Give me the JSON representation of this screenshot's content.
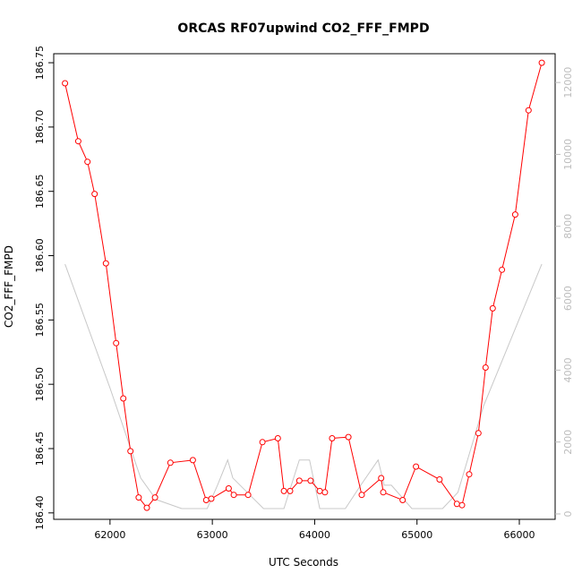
{
  "chart_data": {
    "type": "line",
    "title": "ORCAS RF07upwind CO2_FFF_FMPD",
    "xlabel": "UTC Seconds",
    "ylabel": "CO2_FFF_FMPD",
    "xlim": [
      61450,
      66350
    ],
    "ylim": [
      186.395,
      186.757
    ],
    "y2lim": [
      -150,
      12800
    ],
    "x_ticks": [
      62000,
      63000,
      64000,
      65000,
      66000
    ],
    "y_ticks": [
      186.4,
      186.45,
      186.5,
      186.55,
      186.6,
      186.65,
      186.7,
      186.75
    ],
    "y_tick_labels": [
      "186.40",
      "186.45",
      "186.50",
      "186.55",
      "186.60",
      "186.65",
      "186.70",
      "186.75"
    ],
    "y2_ticks": [
      0,
      2000,
      4000,
      6000,
      8000,
      10000,
      12000
    ],
    "grid": false,
    "series": [
      {
        "axis": "left",
        "color": "#ff0000",
        "markers": true,
        "x": [
          61560,
          61690,
          61780,
          61850,
          61960,
          62060,
          62130,
          62200,
          62280,
          62360,
          62440,
          62590,
          62810,
          62940,
          62990,
          63160,
          63210,
          63350,
          63490,
          63640,
          63700,
          63760,
          63850,
          63960,
          64050,
          64100,
          64170,
          64330,
          64460,
          64650,
          64670,
          64860,
          64990,
          65220,
          65390,
          65440,
          65510,
          65600,
          65670,
          65740,
          65830,
          65960,
          66090,
          66220
        ],
        "y": [
          186.734,
          186.689,
          186.673,
          186.648,
          186.594,
          186.532,
          186.489,
          186.448,
          186.412,
          186.404,
          186.412,
          186.439,
          186.441,
          186.41,
          186.411,
          186.419,
          186.414,
          186.414,
          186.455,
          186.458,
          186.417,
          186.417,
          186.425,
          186.425,
          186.417,
          186.416,
          186.458,
          186.459,
          186.414,
          186.427,
          186.416,
          186.41,
          186.436,
          186.426,
          186.407,
          186.406,
          186.43,
          186.462,
          186.513,
          186.559,
          186.589,
          186.632,
          186.713,
          186.75
        ]
      },
      {
        "axis": "right",
        "color": "#c8c8c8",
        "markers": false,
        "x": [
          61560,
          62000,
          62300,
          62450,
          62700,
          62950,
          63050,
          63150,
          63200,
          63500,
          63700,
          63850,
          63950,
          64050,
          64150,
          64300,
          64450,
          64620,
          64680,
          64750,
          64950,
          65250,
          65400,
          65650,
          66220
        ],
        "y": [
          6950,
          3500,
          1000,
          400,
          150,
          150,
          800,
          1500,
          1000,
          150,
          150,
          1500,
          1500,
          150,
          150,
          150,
          800,
          1500,
          800,
          800,
          150,
          150,
          600,
          3000,
          6950
        ]
      }
    ]
  }
}
